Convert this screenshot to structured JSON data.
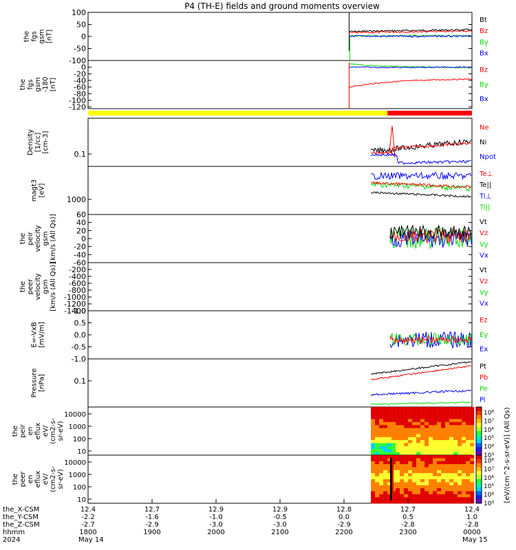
{
  "title": "P4 (TH-E) fields and ground moments overview",
  "colors": {
    "black": "#000000",
    "red": "#ff0000",
    "green": "#00dd00",
    "blue": "#0000ff",
    "yellow": "#ffff00",
    "bar_red": "#ff0000"
  },
  "chart_data": [
    {
      "id": "fgs_gsm",
      "type": "line",
      "ylabel": [
        "the",
        "fgs",
        "gsm",
        "[nT]"
      ],
      "ylim": [
        -100,
        100
      ],
      "yticks": [
        "100",
        "50",
        "0",
        "-50",
        "-100"
      ],
      "legend": [
        {
          "label": "Bt",
          "color": "#000000"
        },
        {
          "label": "Bz",
          "color": "#ff0000"
        },
        {
          "label": "By",
          "color": "#00dd00"
        },
        {
          "label": "Bx",
          "color": "#0000ff"
        }
      ],
      "data_start_hour": 22.08,
      "series": [
        {
          "label": "Bt",
          "values": [
            20,
            22,
            23,
            24,
            25,
            26,
            27,
            28
          ]
        },
        {
          "label": "Bz",
          "values": [
            15,
            16,
            18,
            19,
            20,
            21,
            21,
            22
          ]
        },
        {
          "label": "By",
          "values": [
            2,
            3,
            2,
            3,
            3,
            2,
            3,
            2
          ]
        },
        {
          "label": "Bx",
          "values": [
            1,
            1,
            0,
            1,
            0,
            1,
            0,
            1
          ]
        }
      ]
    },
    {
      "id": "fgs_gsm_zoom",
      "type": "line",
      "ylabel": [
        "the",
        "fgs",
        "gsm",
        "-180",
        "[nT]"
      ],
      "ylim": [
        -125,
        20
      ],
      "yticks": [
        "0",
        "-20",
        "-40",
        "-60",
        "-80",
        "-100",
        "-120"
      ],
      "legend": [
        {
          "label": "Bz",
          "color": "#ff0000"
        },
        {
          "label": "By",
          "color": "#00dd00"
        },
        {
          "label": "Bx",
          "color": "#0000ff"
        }
      ],
      "data_start_hour": 22.08,
      "series": [
        {
          "label": "Bz",
          "values": [
            -60,
            -52,
            -46,
            -42,
            -40,
            -38,
            -37,
            -36
          ]
        },
        {
          "label": "By",
          "values": [
            10,
            5,
            3,
            2,
            1,
            0,
            -1,
            -2
          ]
        },
        {
          "label": "Bx",
          "values": [
            0,
            0,
            -1,
            -1,
            -1,
            0,
            0,
            0
          ]
        }
      ]
    },
    {
      "id": "mode_bar",
      "type": "bar",
      "segments": [
        {
          "start_hour": 18.0,
          "end_hour": 22.68,
          "color": "#ffff00"
        },
        {
          "start_hour": 22.68,
          "end_hour": 24.0,
          "color": "#ff0000"
        }
      ]
    },
    {
      "id": "density",
      "type": "line",
      "scale": "log",
      "ylabel": [
        "Density",
        "[1/cc]",
        "[cm-3]"
      ],
      "ytick_labels": [
        "0.1"
      ],
      "legend": [
        {
          "label": "Ne",
          "color": "#ff0000"
        },
        {
          "label": "Ni",
          "color": "#000000"
        },
        {
          "label": "Npot",
          "color": "#0000ff"
        }
      ],
      "data_start_hour": 22.42
    },
    {
      "id": "temperature",
      "type": "line",
      "scale": "log",
      "ylabel": [
        "magt3",
        "[eV]"
      ],
      "ytick_labels": [
        "1000"
      ],
      "legend": [
        {
          "label": "Te⊥",
          "color": "#ff0000"
        },
        {
          "label": "Te||",
          "color": "#000000"
        },
        {
          "label": "Ti⊥",
          "color": "#0000ff"
        },
        {
          "label": "Ti||",
          "color": "#00dd00"
        }
      ],
      "data_start_hour": 22.42
    },
    {
      "id": "peir_velocity",
      "type": "line",
      "ylabel": [
        "the",
        "peir",
        "velocity",
        "gsm",
        "[km/s (All Qs)]"
      ],
      "ylim": [
        -60,
        60
      ],
      "yticks": [
        "60",
        "40",
        "20",
        "0",
        "-20",
        "-40",
        "-60"
      ],
      "legend": [
        {
          "label": "Vt",
          "color": "#000000"
        },
        {
          "label": "Vz",
          "color": "#ff0000"
        },
        {
          "label": "Vy",
          "color": "#00dd00"
        },
        {
          "label": "Vx",
          "color": "#0000ff"
        }
      ],
      "data_start_hour": 22.72
    },
    {
      "id": "peer_velocity",
      "type": "line",
      "ylabel": [
        "the",
        "peer",
        "velocity",
        "gsm",
        "[km/s (All Qs)]"
      ],
      "ylim": [
        -1400,
        0
      ],
      "yticks": [
        "-200",
        "-400",
        "-600",
        "-800",
        "-1000",
        "-1200",
        "-1400"
      ],
      "legend": [
        {
          "label": "Vt",
          "color": "#000000"
        },
        {
          "label": "Vz",
          "color": "#ff0000"
        },
        {
          "label": "Vy",
          "color": "#00dd00"
        },
        {
          "label": "Vx",
          "color": "#0000ff"
        }
      ]
    },
    {
      "id": "efield",
      "type": "line",
      "ylabel": [
        "E=-VxB",
        "[mV/m]"
      ],
      "ylim": [
        -1.0,
        1.0
      ],
      "yticks": [
        "1.0",
        "0.5",
        "0.0",
        "-0.5",
        "-1.0"
      ],
      "legend": [
        {
          "label": "Ez",
          "color": "#ff0000"
        },
        {
          "label": "Ey",
          "color": "#00dd00"
        },
        {
          "label": "Ex",
          "color": "#0000ff"
        }
      ],
      "data_start_hour": 22.72
    },
    {
      "id": "pressure",
      "type": "line",
      "scale": "log",
      "ylabel": [
        "Pressure",
        "[nPa]"
      ],
      "ytick_labels": [
        "0.1"
      ],
      "legend": [
        {
          "label": "Pt",
          "color": "#000000"
        },
        {
          "label": "Pb",
          "color": "#ff0000"
        },
        {
          "label": "Pe",
          "color": "#00dd00"
        },
        {
          "label": "Pi",
          "color": "#0000ff"
        }
      ],
      "data_start_hour": 22.42
    },
    {
      "id": "peir_en_eflux",
      "type": "heatmap",
      "scale": "log",
      "ylabel": [
        "the",
        "peir",
        "en",
        "eflux",
        "eV/",
        "(cm2-s-",
        "sr-eV)"
      ],
      "yticks": [
        "10000",
        "1000",
        "100",
        "10"
      ],
      "data_start_hour": 22.42
    },
    {
      "id": "peer_en_eflux",
      "type": "heatmap",
      "scale": "log",
      "ylabel": [
        "the",
        "peer",
        "en",
        "eflux",
        "eV/",
        "(cm2-s-",
        "sr-eV)"
      ],
      "yticks": [
        "10000",
        "1000",
        "100",
        "10"
      ],
      "data_start_hour": 22.42
    }
  ],
  "colorbar": {
    "label": "[eV/(cm^2-s-sr-eV)] (All Qs)",
    "ticks_top": [
      "10⁸",
      "10⁷",
      "10⁶",
      "10⁵",
      "10⁴",
      "10³"
    ],
    "ticks_bottom": [
      "10⁸",
      "10⁷",
      "10⁶",
      "10⁵",
      "10⁴",
      "10³"
    ]
  },
  "xaxis": {
    "row_labels": [
      "the_X-CSM",
      "the_Y-CSM",
      "the_Z-CSM",
      "hhmm",
      "2024"
    ],
    "columns": [
      {
        "values": [
          "12.4",
          "-2.2",
          "-2.7",
          "1800",
          "May 14"
        ]
      },
      {
        "values": [
          "12.7",
          "-1.6",
          "-2.9",
          "1900",
          ""
        ]
      },
      {
        "values": [
          "12.9",
          "-1.0",
          "-3.0",
          "2000",
          ""
        ]
      },
      {
        "values": [
          "12.9",
          "-0.5",
          "-3.0",
          "2100",
          ""
        ]
      },
      {
        "values": [
          "12.8",
          "0.0",
          "-2.9",
          "2200",
          ""
        ]
      },
      {
        "values": [
          "12.7",
          "0.5",
          "-2.8",
          "2300",
          ""
        ]
      },
      {
        "values": [
          "12.4",
          "1.0",
          "-2.8",
          "0000",
          "May 15"
        ]
      }
    ]
  }
}
